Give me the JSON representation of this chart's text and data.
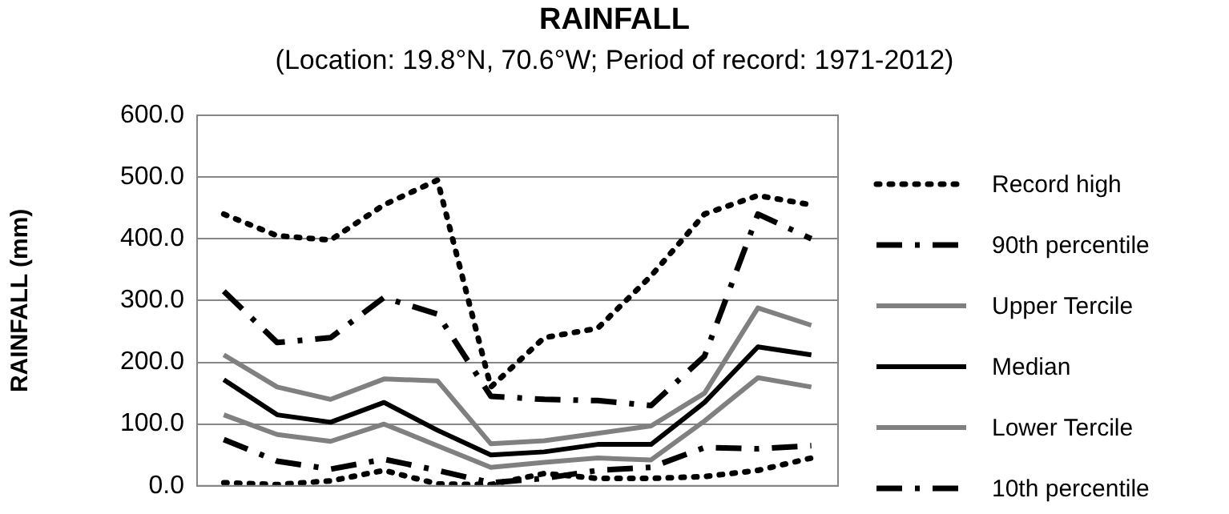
{
  "chart_data": {
    "type": "line",
    "title": "RAINFALL",
    "subtitle": "(Location: 19.8°N, 70.6°W; Period of record: 1971-2012)",
    "ylabel": "RAINFALL (mm)",
    "categories": [
      null,
      null,
      null,
      null,
      null,
      null,
      null,
      null,
      null,
      null,
      null,
      null
    ],
    "series": [
      {
        "name": "Record high",
        "color": "#000000",
        "line_style": "dotted",
        "values": [
          440,
          405,
          398,
          455,
          495,
          160,
          240,
          255,
          340,
          440,
          470,
          455
        ]
      },
      {
        "name": "90th percentile",
        "color": "#000000",
        "line_style": "dashed",
        "values": [
          315,
          232,
          240,
          305,
          278,
          145,
          140,
          138,
          130,
          210,
          440,
          400
        ]
      },
      {
        "name": "Upper Tercile",
        "color": "#808080",
        "line_style": "solid",
        "values": [
          212,
          160,
          140,
          173,
          170,
          68,
          73,
          85,
          97,
          150,
          288,
          260
        ]
      },
      {
        "name": "Median",
        "color": "#000000",
        "line_style": "solid",
        "values": [
          172,
          115,
          103,
          135,
          90,
          50,
          55,
          67,
          67,
          135,
          225,
          212
        ]
      },
      {
        "name": "Lower Tercile",
        "color": "#808080",
        "line_style": "solid",
        "values": [
          115,
          83,
          72,
          100,
          65,
          30,
          38,
          45,
          42,
          105,
          175,
          160
        ]
      },
      {
        "name": "10th percentile",
        "color": "#000000",
        "line_style": "dashed",
        "values": [
          75,
          40,
          27,
          43,
          25,
          5,
          12,
          25,
          30,
          62,
          60,
          65
        ]
      },
      {
        "color": "#000000",
        "line_style": "dotted",
        "values": [
          5,
          2,
          8,
          25,
          3,
          2,
          20,
          12,
          12,
          15,
          25,
          45
        ]
      }
    ],
    "ylim": [
      0,
      600
    ],
    "yticks": [
      {
        "value": 0,
        "label": "0.0"
      },
      {
        "value": 100,
        "label": "100.0"
      },
      {
        "value": 200,
        "label": "200.0"
      },
      {
        "value": 300,
        "label": "300.0"
      },
      {
        "value": 400,
        "label": "400.0"
      },
      {
        "value": 500,
        "label": "500.0"
      },
      {
        "value": 600,
        "label": "600.0"
      }
    ],
    "grid": "y",
    "legend": "right",
    "marker": "none",
    "tick_labels": "y"
  }
}
